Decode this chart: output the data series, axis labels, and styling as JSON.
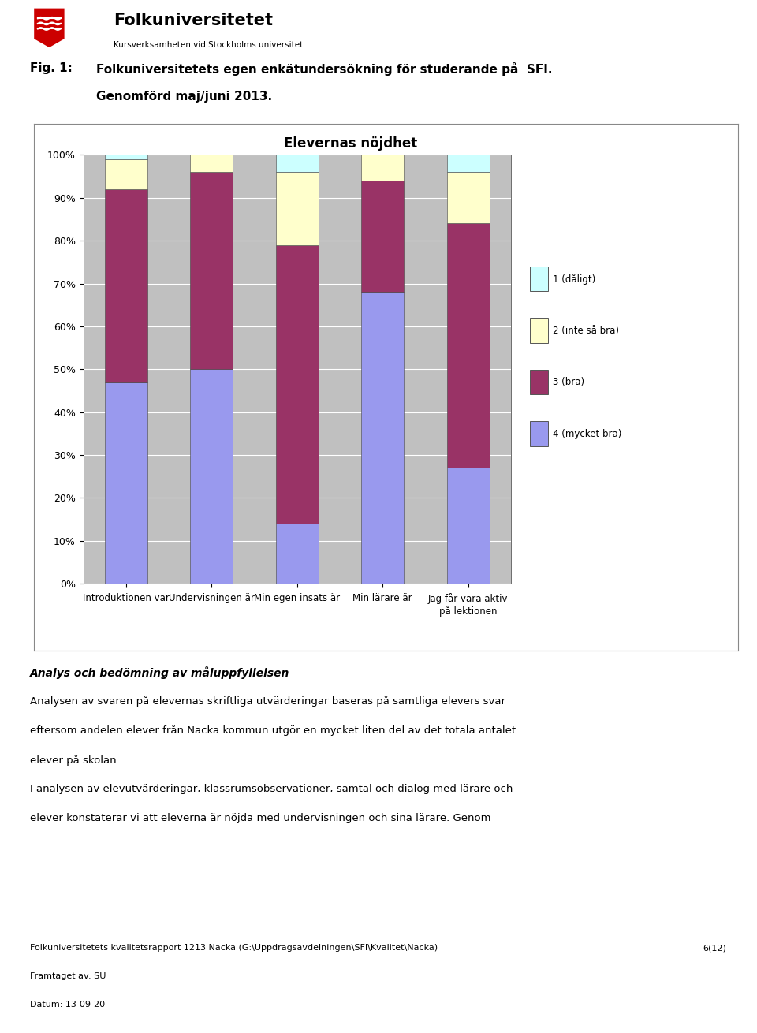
{
  "title": "Elevernas nöjdhet",
  "categories": [
    "Introduktionen var",
    "Undervisningen är",
    "Min egen insats är",
    "Min lärare är",
    "Jag får vara aktiv\npå lektionen"
  ],
  "series": {
    "4 (mycket bra)": [
      47,
      50,
      14,
      68,
      27
    ],
    "3 (bra)": [
      45,
      46,
      65,
      26,
      57
    ],
    "2 (inte så bra)": [
      7,
      4,
      17,
      6,
      12
    ],
    "1 (dåligt)": [
      1,
      0,
      4,
      0,
      4
    ]
  },
  "colors": {
    "4 (mycket bra)": "#9999EE",
    "3 (bra)": "#993366",
    "2 (inte så bra)": "#FFFFCC",
    "1 (dåligt)": "#CCFFFF"
  },
  "legend_order": [
    "1 (dåligt)",
    "2 (inte så bra)",
    "3 (bra)",
    "4 (mycket bra)"
  ],
  "ylim": [
    0,
    100
  ],
  "yticks": [
    0,
    10,
    20,
    30,
    40,
    50,
    60,
    70,
    80,
    90,
    100
  ],
  "chart_bg": "#C0C0C0",
  "page_bg": "#FFFFFF",
  "fig_label": "Fig. 1:",
  "header_text_line1": "Folkuniversitetets egen enkätundersökning för studerande på  SFI.",
  "header_text_line2": "Genomförd maj/juni 2013.",
  "bold_text": "Analys och bedömning av måluppfyllelsen",
  "body_text1": "Analysen av svaren på elevernas skriftliga utvärderingar baseras på samtliga elevers svar",
  "body_text2": "eftersom andelen elever från Nacka kommun utgör en mycket liten del av det totala antalet",
  "body_text3": "elever på skolan.",
  "body_text4": "I analysen av elevutvärderingar, klassrumsobservationer, samtal och dialog med lärare och",
  "body_text5": "elever konstaterar vi att eleverna är nöjda med undervisningen och sina lärare. Genom",
  "footer1": "Folkuniversitetets kvalitetsrapport 1213 Nacka (G:\\Uppdragsavdelningen\\SFI\\Kvalitet\\Nacka)",
  "footer2": "Framtaget av: SU",
  "footer3": "Datum: 13-09-20",
  "footer_right": "6(12)"
}
